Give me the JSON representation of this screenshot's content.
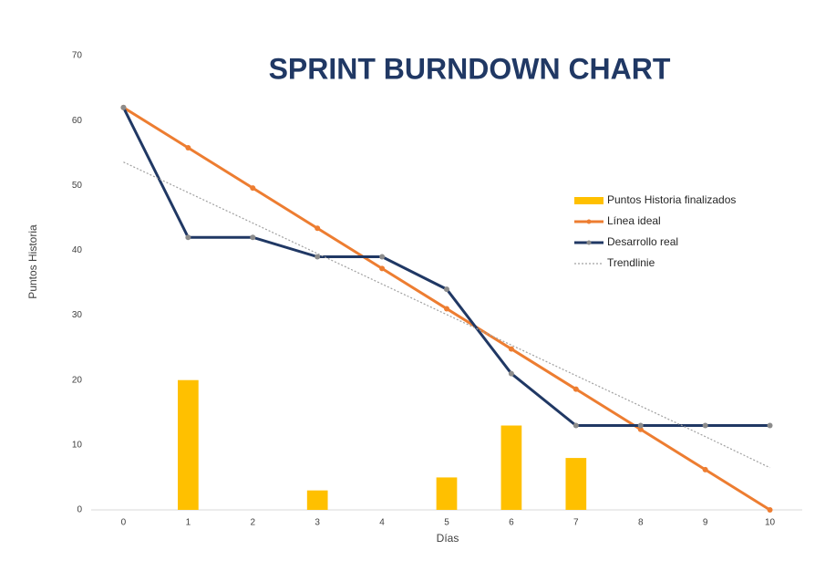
{
  "chart_data": {
    "type": "bar",
    "title": "SPRINT BURNDOWN CHART",
    "x_label": "Días",
    "y_label": "Puntos Historia",
    "x": [
      0,
      1,
      2,
      3,
      4,
      5,
      6,
      7,
      8,
      9,
      10
    ],
    "xlim": [
      -0.5,
      10.5
    ],
    "xticks": [
      0,
      1,
      2,
      3,
      4,
      5,
      6,
      7,
      8,
      9,
      10
    ],
    "ylim": [
      0,
      70
    ],
    "yticks": [
      0,
      10,
      20,
      30,
      40,
      50,
      60,
      70
    ],
    "grid": false,
    "legend": "right",
    "series": [
      {
        "name": "Puntos Historia finalizados",
        "type": "bar",
        "color": "#ffc000",
        "values": [
          0,
          20,
          0,
          3,
          0,
          5,
          13,
          8,
          0,
          0,
          0
        ]
      },
      {
        "name": "Línea ideal",
        "type": "line",
        "color": "#ed7d31",
        "marker_color": "#ed7d31",
        "values": [
          62,
          55.8,
          49.6,
          43.4,
          37.2,
          31,
          24.8,
          18.6,
          12.4,
          6.2,
          0
        ]
      },
      {
        "name": "Desarrollo real",
        "type": "line",
        "color": "#203864",
        "marker_color": "#8c8c8c",
        "values": [
          62,
          42,
          42,
          39,
          39,
          34,
          21,
          13,
          13,
          13,
          13
        ]
      },
      {
        "name": "Trendlinie",
        "type": "trend",
        "color": "#a0a0a0",
        "values": [
          53.6,
          48.9,
          44.2,
          39.5,
          34.8,
          30.1,
          25.4,
          20.7,
          16.0,
          11.3,
          6.5
        ]
      }
    ]
  }
}
